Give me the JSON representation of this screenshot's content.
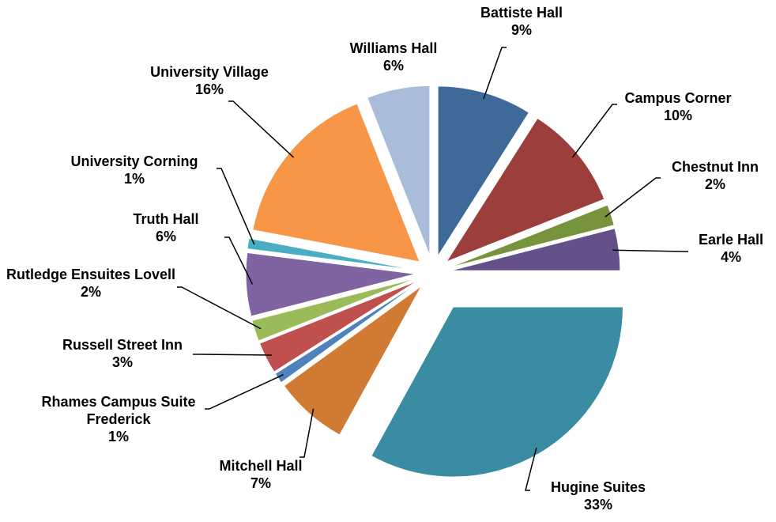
{
  "chart_data": {
    "type": "pie",
    "categories": [
      "Battiste Hall",
      "Campus Corner",
      "Chestnut Inn",
      "Earle Hall",
      "Hugine Suites",
      "Mitchell Hall",
      "Rhames Campus Suite Frederick",
      "Russell Street Inn",
      "Rutledge Ensuites Lovell",
      "Truth Hall",
      "University Corning",
      "University Village",
      "Williams Hall"
    ],
    "values": [
      9,
      10,
      2,
      4,
      33,
      7,
      1,
      3,
      2,
      6,
      1,
      16,
      6
    ],
    "value_labels": [
      "9%",
      "10%",
      "2%",
      "4%",
      "33%",
      "7%",
      "1%",
      "3%",
      "2%",
      "6%",
      "1%",
      "16%",
      "6%"
    ],
    "colors": [
      "#3e6a9a",
      "#9c3e3c",
      "#77933c",
      "#65508a",
      "#3a8ca3",
      "#d07a33",
      "#4f81bd",
      "#c0504d",
      "#9bbb59",
      "#8064a2",
      "#4bacc6",
      "#f79646",
      "#a9bcd9"
    ]
  }
}
